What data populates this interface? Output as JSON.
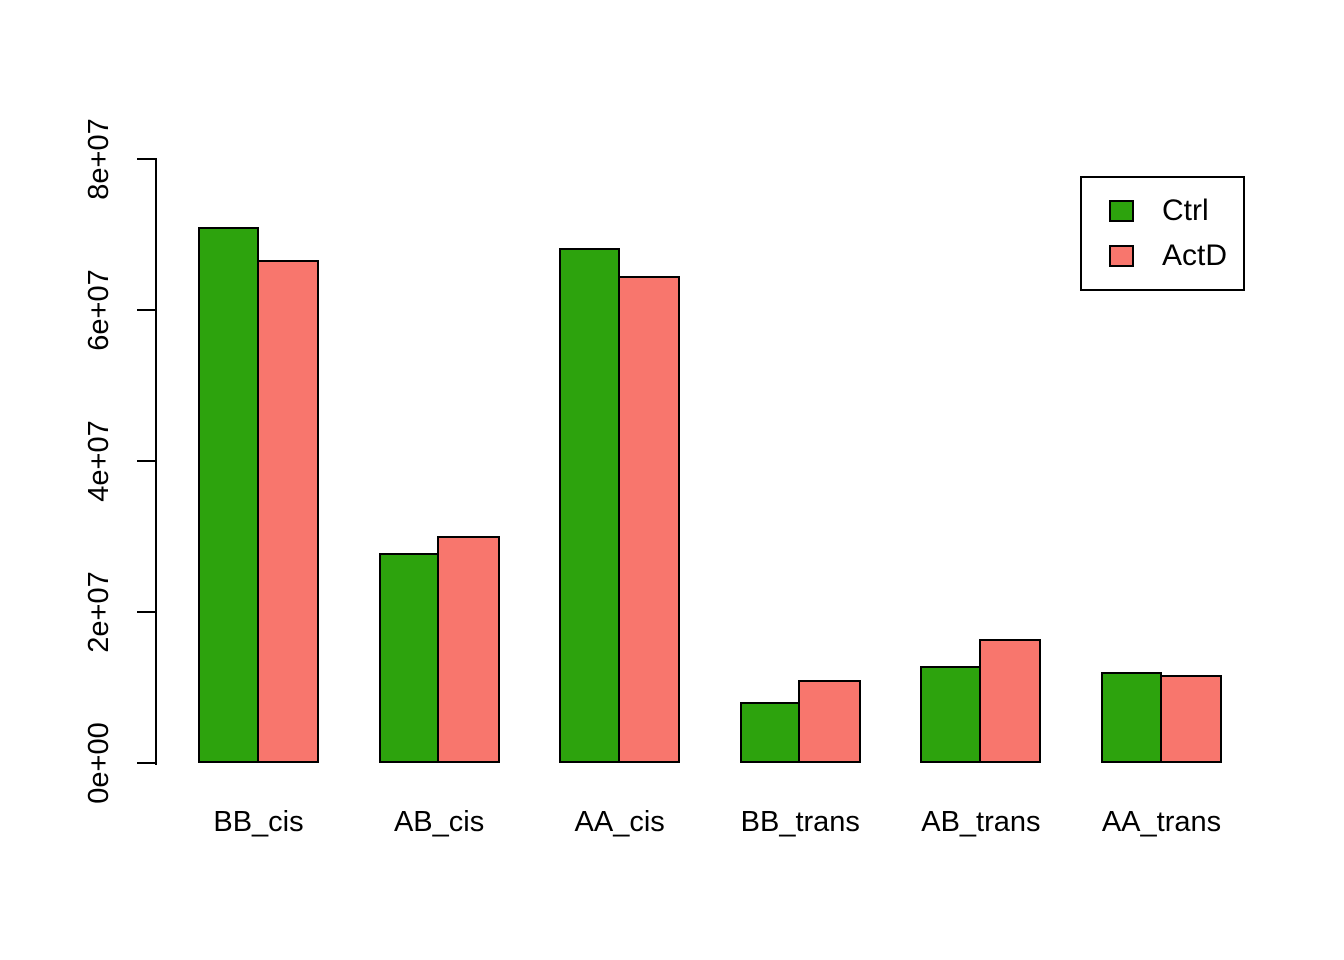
{
  "chart_data": {
    "type": "bar",
    "title": "",
    "xlabel": "",
    "ylabel": "",
    "categories": [
      "BB_cis",
      "AB_cis",
      "AA_cis",
      "BB_trans",
      "AB_trans",
      "AA_trans"
    ],
    "series": [
      {
        "name": "Ctrl",
        "color": "#2DA30D",
        "values": [
          71000000,
          27800000,
          68200000,
          8100000,
          12800000,
          12100000
        ]
      },
      {
        "name": "ActD",
        "color": "#F8766D",
        "values": [
          66600000,
          30100000,
          64500000,
          11000000,
          16400000,
          11700000
        ]
      }
    ],
    "ylim": [
      0,
      80000000
    ],
    "yticks": [
      0,
      20000000,
      40000000,
      60000000,
      80000000
    ],
    "ytick_labels": [
      "0e+00",
      "2e+07",
      "4e+07",
      "6e+07",
      "8e+07"
    ],
    "grid": false,
    "legend_position": "top-right",
    "bar_border_color": "#000000",
    "axis_color": "#000000"
  }
}
